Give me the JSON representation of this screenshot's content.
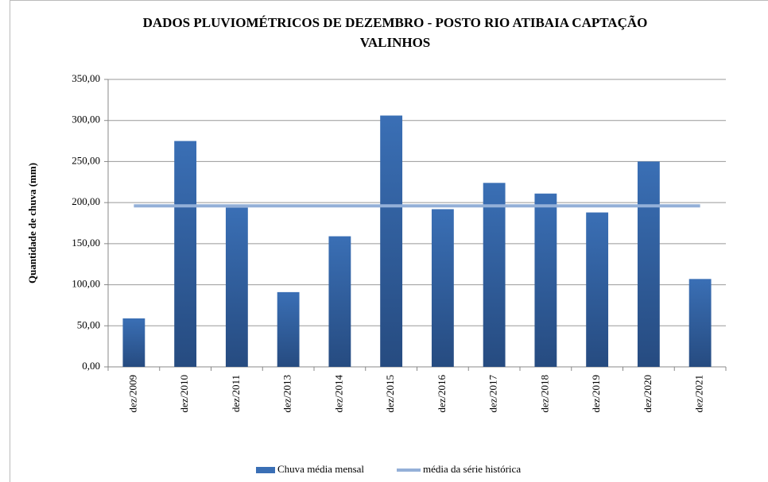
{
  "chart_data": {
    "type": "bar",
    "title": [
      "DADOS PLUVIOMÉTRICOS DE DEZEMBRO - POSTO RIO ATIBAIA CAPTAÇÃO",
      "VALINHOS"
    ],
    "y_label": "Quantidade de chuva (mm)",
    "categories": [
      "dez/2009",
      "dez/2010",
      "dez/2011",
      "dez/2013",
      "dez/2014",
      "dez/2015",
      "dez/2016",
      "dez/2017",
      "dez/2018",
      "dez/2019",
      "dez/2020",
      "dez/2021"
    ],
    "series": [
      {
        "name": "Chuva média mensal",
        "type": "bar",
        "color": "#3a6fb5",
        "values": [
          59,
          275,
          194,
          91,
          159,
          306,
          192,
          224,
          211,
          188,
          250,
          107
        ]
      },
      {
        "name": "média da série histórica",
        "type": "line",
        "color": "#94b0d8",
        "values": [
          196,
          196,
          196,
          196,
          196,
          196,
          196,
          196,
          196,
          196,
          196,
          196
        ]
      }
    ],
    "ylim": [
      0,
      350
    ],
    "yticks": [
      {
        "value": 0,
        "label": "0,00"
      },
      {
        "value": 50,
        "label": "50,00"
      },
      {
        "value": 100,
        "label": "100,00"
      },
      {
        "value": 150,
        "label": "150,00"
      },
      {
        "value": 200,
        "label": "200,00"
      },
      {
        "value": 250,
        "label": "250,00"
      },
      {
        "value": 300,
        "label": "300,00"
      },
      {
        "value": 350,
        "label": "350,00"
      }
    ],
    "grid": true,
    "legend": "bottom"
  }
}
